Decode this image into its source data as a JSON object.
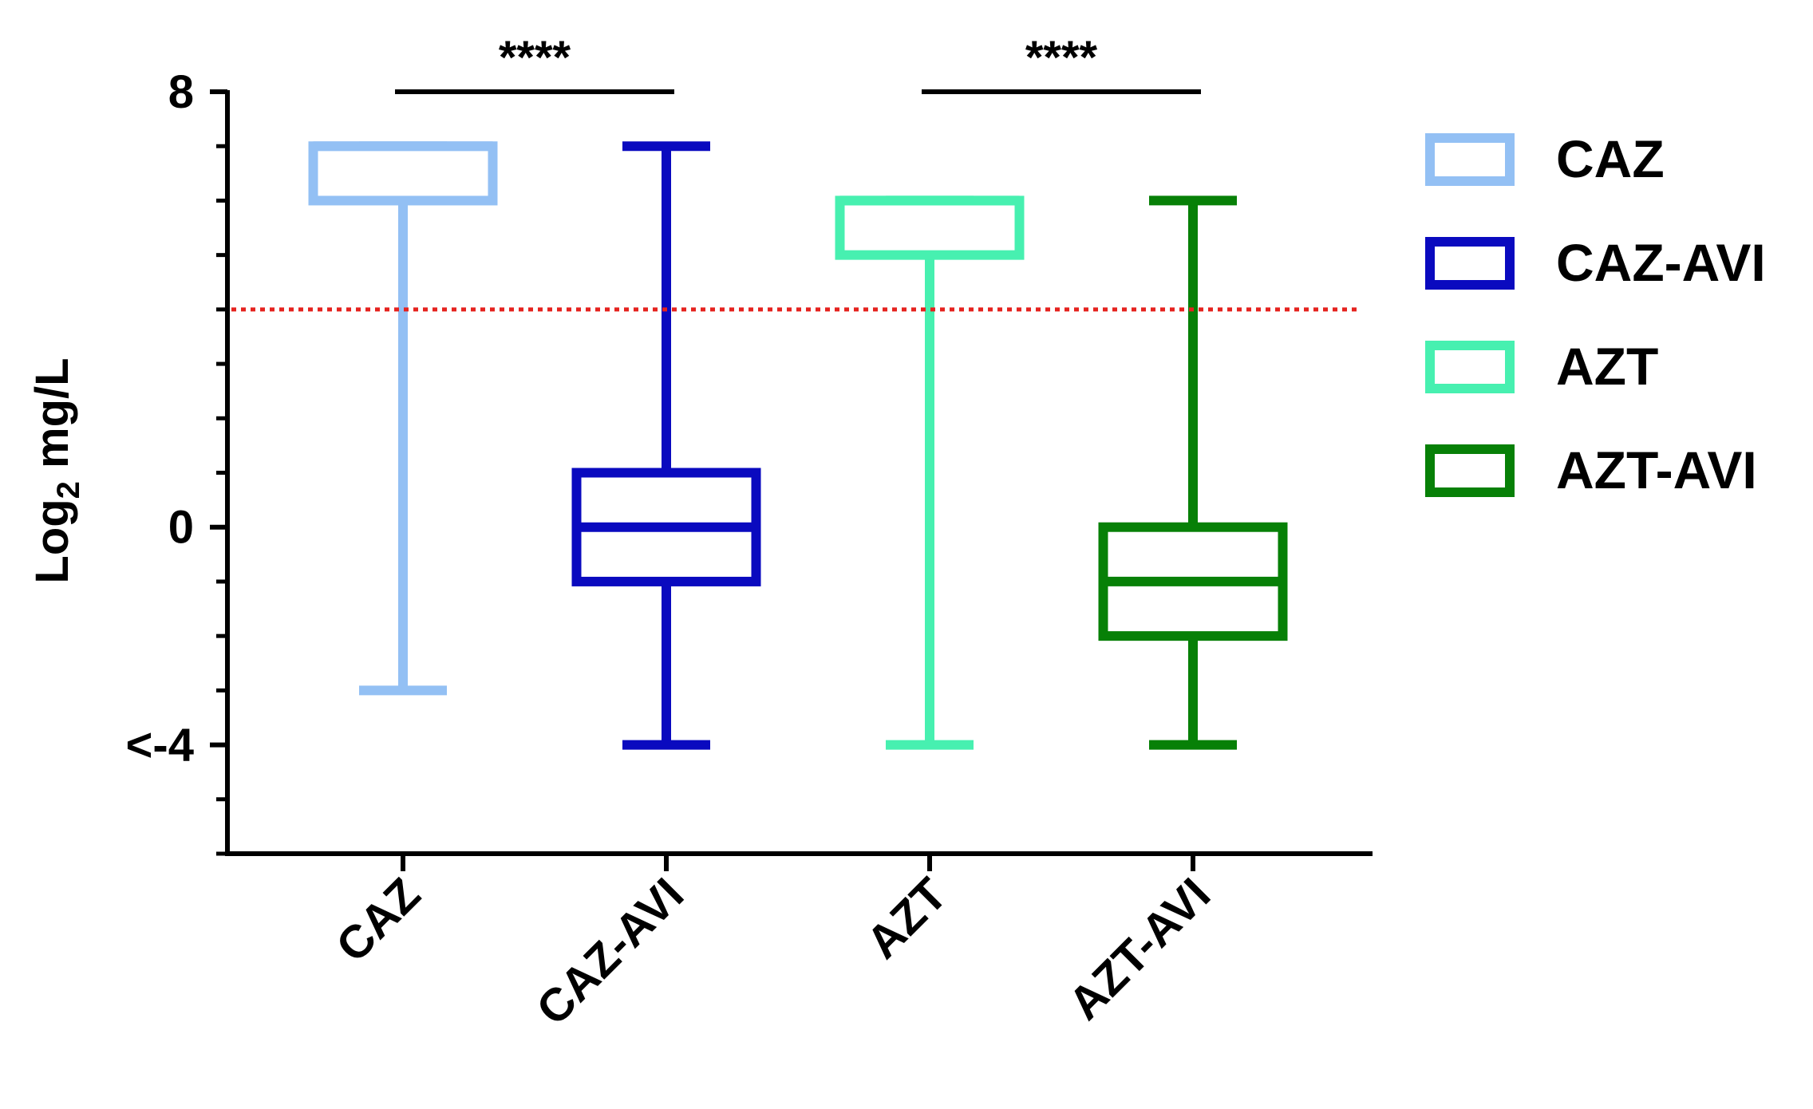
{
  "chart_data": {
    "type": "box",
    "title": "",
    "xlabel": "",
    "ylabel": {
      "main": "Log",
      "sub": "2",
      "unit": " mg/L"
    },
    "ylim": [
      -6,
      8
    ],
    "y_ticks": [
      {
        "value": 8,
        "label": "8"
      },
      {
        "value": 0,
        "label": "0"
      },
      {
        "value": -4,
        "label": "<-4"
      }
    ],
    "y_minor_ticks": [
      7,
      6,
      5,
      4,
      3,
      2,
      1,
      -1,
      -2,
      -3,
      -5,
      -6
    ],
    "categories": [
      "CAZ",
      "CAZ-AVI",
      "AZT",
      "AZT-AVI"
    ],
    "series": [
      {
        "name": "CAZ",
        "color": "#93C0F4",
        "min": -3,
        "q1": 6,
        "median": 7,
        "q3": 7,
        "max": 7
      },
      {
        "name": "CAZ-AVI",
        "color": "#0A0ABF",
        "min": -4,
        "q1": -1,
        "median": 0,
        "q3": 1,
        "max": 7
      },
      {
        "name": "AZT",
        "color": "#47F0B0",
        "min": -4,
        "q1": 5,
        "median": 6,
        "q3": 6,
        "max": 6
      },
      {
        "name": "AZT-AVI",
        "color": "#078007",
        "min": -4,
        "q1": -2,
        "median": -1,
        "q3": 0,
        "max": 6
      }
    ],
    "reference_line": {
      "value": 4,
      "color": "#E5221E",
      "style": "dotted"
    },
    "significance": [
      {
        "from": 0,
        "to": 1,
        "label": "****"
      },
      {
        "from": 2,
        "to": 3,
        "label": "****"
      }
    ],
    "legend": {
      "position": "right",
      "entries": [
        "CAZ",
        "CAZ-AVI",
        "AZT",
        "AZT-AVI"
      ]
    }
  }
}
